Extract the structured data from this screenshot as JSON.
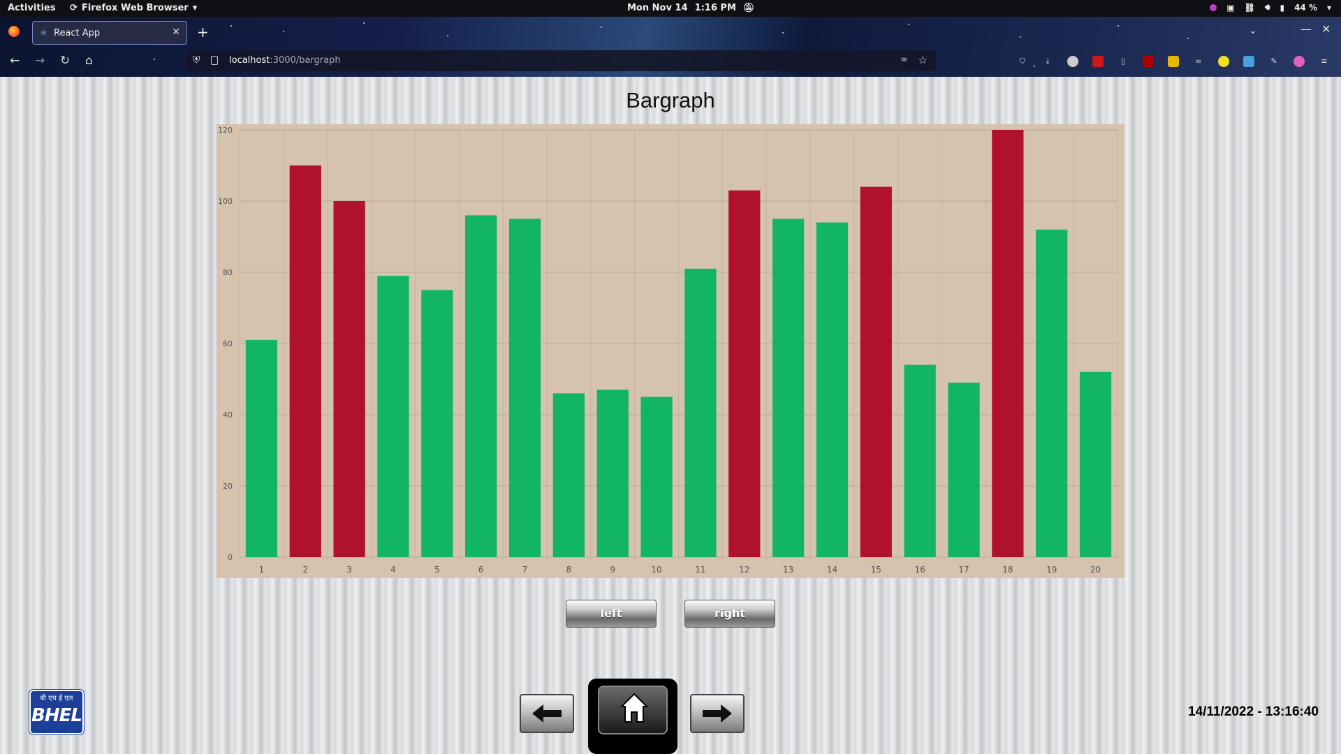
{
  "system_bar": {
    "activities": "Activities",
    "app_name": "Firefox Web Browser",
    "date": "Mon Nov 14",
    "time": "1:16 PM",
    "battery": "44 %"
  },
  "browser": {
    "tab_title": "React App",
    "url_host": "localhost",
    "url_path": ":3000/bargraph"
  },
  "page": {
    "title": "Bargraph",
    "left_button": "left",
    "right_button": "right",
    "logo_hindi": "बी एच ई एल",
    "logo_text": "BHEL",
    "timestamp": "14/11/2022 - 13:16:40"
  },
  "colors": {
    "normal_bar": "#12b563",
    "alarm_bar": "#b0122e",
    "chart_background": "#d5c3ae"
  },
  "chart_data": {
    "type": "bar",
    "title": "",
    "xlabel": "",
    "ylabel": "",
    "categories": [
      "1",
      "2",
      "3",
      "4",
      "5",
      "6",
      "7",
      "8",
      "9",
      "10",
      "11",
      "12",
      "13",
      "14",
      "15",
      "16",
      "17",
      "18",
      "19",
      "20"
    ],
    "values": [
      61,
      110,
      100,
      79,
      75,
      96,
      95,
      46,
      47,
      45,
      81,
      103,
      95,
      94,
      104,
      54,
      49,
      120,
      92,
      52
    ],
    "status": [
      "normal",
      "alarm",
      "alarm",
      "normal",
      "normal",
      "normal",
      "normal",
      "normal",
      "normal",
      "normal",
      "normal",
      "alarm",
      "normal",
      "normal",
      "alarm",
      "normal",
      "normal",
      "alarm",
      "normal",
      "normal"
    ],
    "ylim": [
      0,
      120
    ],
    "yticks": [
      0,
      20,
      40,
      60,
      80,
      100,
      120
    ],
    "grid": true,
    "legend": "none"
  }
}
